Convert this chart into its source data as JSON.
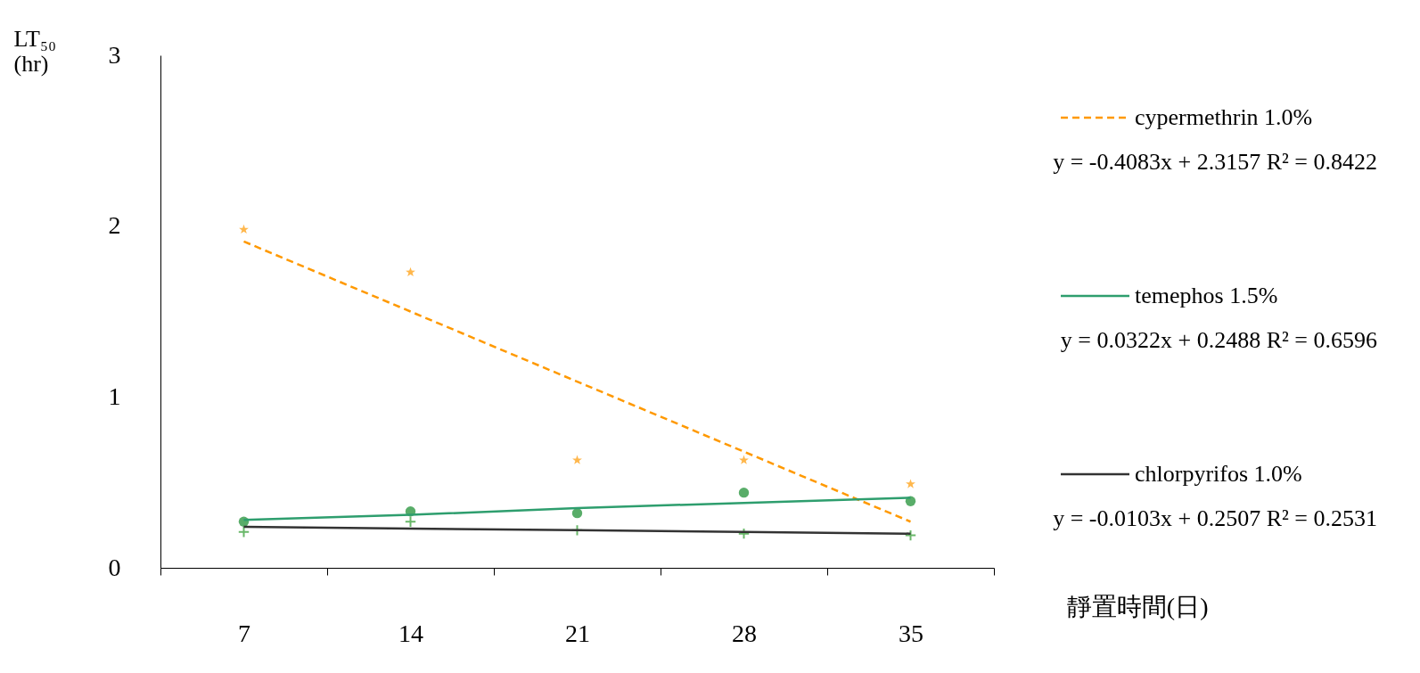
{
  "chart_data": {
    "type": "scatter",
    "xlabel": "靜置時間(日)",
    "ylabel": "LT₅₀ (hr)",
    "categories": [
      "7",
      "14",
      "21",
      "28",
      "35"
    ],
    "ylim": [
      0,
      3
    ],
    "yticks": [
      0,
      1,
      2,
      3
    ],
    "grid": false,
    "legend": "right",
    "series": [
      {
        "color": "#ff9900",
        "marker": "star",
        "values": [
          1.98,
          1.73,
          0.63,
          0.63,
          0.49
        ]
      },
      {
        "color": "#138a2a",
        "marker": "circle",
        "values": [
          0.27,
          0.33,
          0.32,
          0.44,
          0.39
        ]
      },
      {
        "color": "#2a9a2a",
        "marker": "cross",
        "values": [
          0.21,
          0.27,
          0.22,
          0.2,
          0.19
        ]
      },
      {
        "type": "line",
        "name": "cypermethrin  1.0%",
        "color": "#ff9900",
        "line_style": "dashed",
        "marker": "none",
        "values": [
          1.91,
          1.5,
          1.09,
          0.68,
          0.27
        ]
      },
      {
        "type": "line",
        "name": "temephos  1.5%",
        "color": "#2e9e6e",
        "line_style": "solid",
        "marker": "none",
        "values": [
          0.28,
          0.31,
          0.35,
          0.38,
          0.41
        ]
      },
      {
        "type": "line",
        "name": "chlorpyrifos  1.0%",
        "color": "#333333",
        "line_style": "solid",
        "marker": "none",
        "values": [
          0.24,
          0.23,
          0.22,
          0.21,
          0.2
        ]
      }
    ],
    "annotations": [
      "y = -0.4083x + 2.3157  R² = 0.8422",
      "y = 0.0322x + 0.2488  R² = 0.6596",
      "y = -0.0103x + 0.2507  R² = 0.2531"
    ]
  }
}
